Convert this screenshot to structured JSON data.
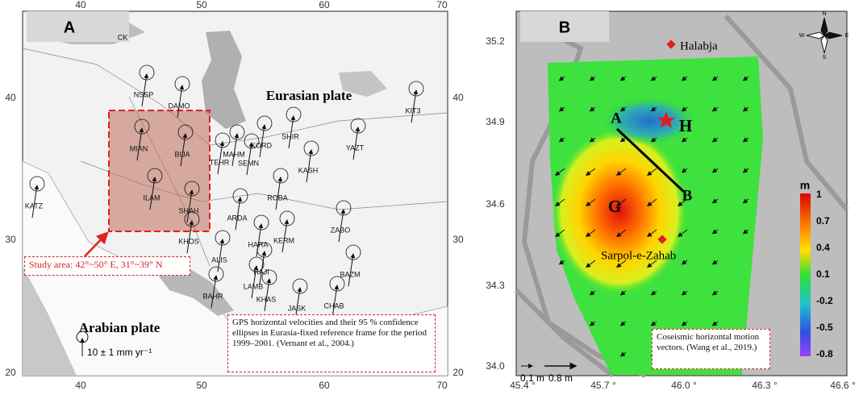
{
  "panel_a": {
    "label": "A",
    "x_ticks": [
      40,
      50,
      60,
      70
    ],
    "y_ticks": [
      40,
      30,
      20
    ],
    "region_label": "CK",
    "eurasian": "Eurasian plate",
    "arabian": "Arabian plate",
    "study_area": "Study area: 42°~50° E, 31°~39° N",
    "scale": "10 ± 1 mm yr⁻¹",
    "caption": "GPS horizontal velocities and their 95 % confidence ellipses in Eurasia-fixed reference frame for the period 1999–2001. (Vernant et al., 2004.)",
    "stations": [
      "NSSP",
      "DAMO",
      "KIT3",
      "MIAN",
      "BIJA",
      "MAHM",
      "KORD",
      "SHIR",
      "YAZT",
      "TEHR",
      "SEMN",
      "KASH",
      "ILAM",
      "SHAH",
      "ROBA",
      "KATZ",
      "ARDA",
      "ZABO",
      "HARA",
      "KERM",
      "KHOS",
      "ALIS",
      "HAJI",
      "LAMB",
      "BAHR",
      "KHAS",
      "JASK",
      "CHAB",
      "BAZM"
    ]
  },
  "panel_b": {
    "label": "B",
    "x_ticks": [
      "45.4 °",
      "45.7 °",
      "46.0 °",
      "46.3 °",
      "46.6 °"
    ],
    "y_ticks": [
      "35.2",
      "34.9",
      "34.6",
      "34.3",
      "34.0"
    ],
    "halabja": "Halabja",
    "sarpol": "Sarpol-e-Zahab",
    "point_a": "A",
    "point_b": "B",
    "point_h": "H",
    "point_g": "G",
    "colorbar_unit": "m",
    "colorbar_ticks": [
      "1",
      "0.7",
      "0.4",
      "0.1",
      "-0.2",
      "-0.5",
      "-0.8"
    ],
    "scale_small": "0.1 m",
    "scale_large": "0.8 m",
    "caption": "Coseismic horizontal motion vectors. (Wang et al., 2019.)",
    "compass": [
      "N",
      "E",
      "S",
      "W"
    ]
  }
}
